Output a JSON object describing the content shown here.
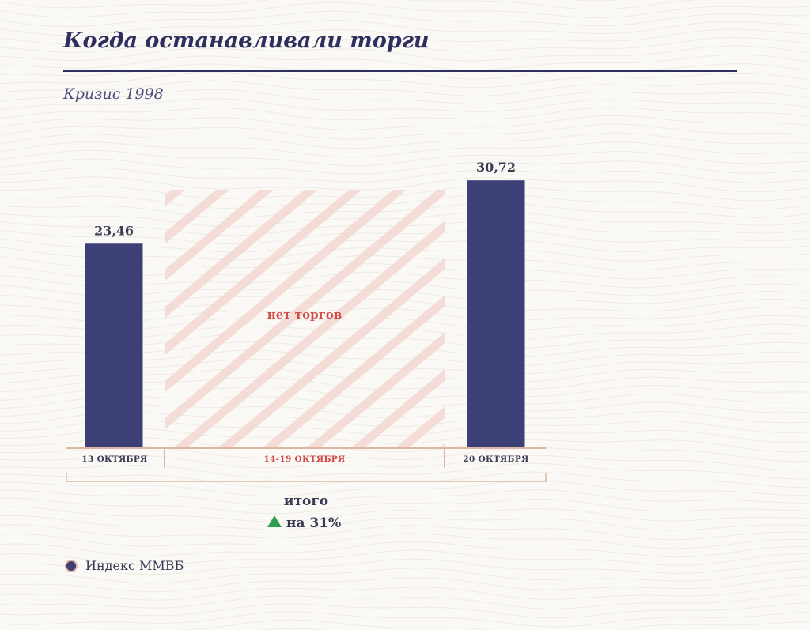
{
  "title": "Когда останавливали торги",
  "subtitle": "Кризис 1998",
  "colors": {
    "bar": "#3d3f77",
    "accent_red": "#d04a47",
    "axis": "#dcb6a3",
    "up_arrow": "#2f9e4f",
    "hatch": "#f3d8d2"
  },
  "chart_data": {
    "type": "bar",
    "categories": [
      "13 ОКТЯБРЯ",
      "14-19 ОКТЯБРЯ",
      "20 ОКТЯБРЯ"
    ],
    "values": [
      23.46,
      null,
      30.72
    ],
    "value_labels": [
      "23,46",
      "",
      "30,72"
    ],
    "gap_label": "нет торгов",
    "ylim": [
      0,
      34
    ],
    "grid": false,
    "legend_position": "bottom-left"
  },
  "summary": {
    "label": "итого",
    "change": "на 31%",
    "direction_icon": "up-triangle-icon"
  },
  "legend": {
    "label": "Индекс ММВБ"
  }
}
